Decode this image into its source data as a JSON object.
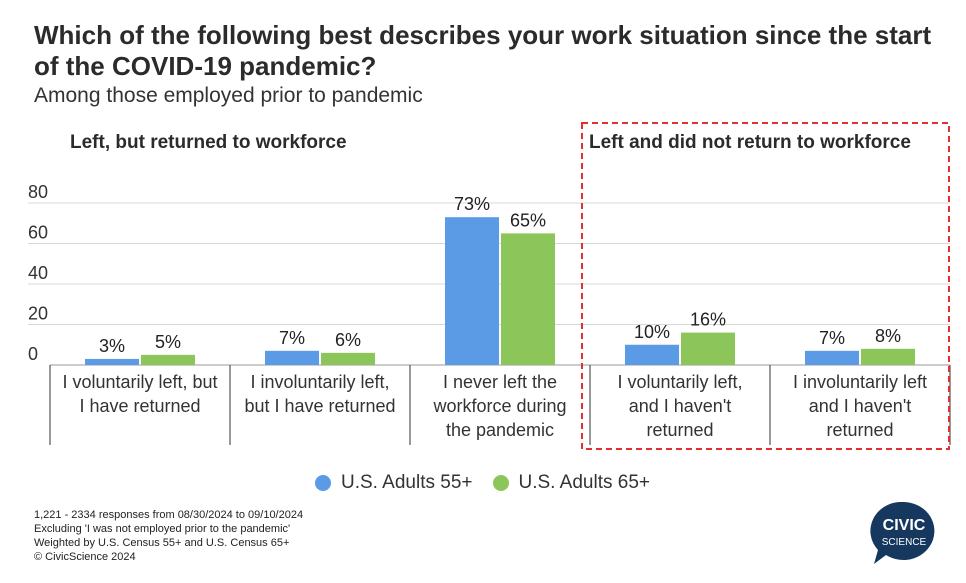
{
  "header": {
    "title": "Which of the following best describes your work situation since the start of the COVID-19 pandemic?",
    "subtitle": "Among those employed prior to pandemic"
  },
  "groups": [
    {
      "label": "Left, but returned to workforce"
    },
    {
      "label": "Left and did not return to workforce"
    }
  ],
  "colors": {
    "series1": "#5b9be6",
    "series2": "#8cc65a",
    "highlight": "#e03030",
    "grid": "#d8d8d8",
    "logo": "#16385f"
  },
  "chart_data": {
    "type": "bar",
    "title": "Which of the following best describes your work situation since the start of the COVID-19 pandemic?",
    "subtitle": "Among those employed prior to pandemic",
    "categories": [
      [
        "I voluntarily left, but",
        "I have returned"
      ],
      [
        "I involuntarily left,",
        "but I have returned"
      ],
      [
        "I never left the",
        "workforce during",
        "the pandemic"
      ],
      [
        "I voluntarily left,",
        "and I haven't",
        "returned"
      ],
      [
        "I involuntarily left",
        "and I haven't",
        "returned"
      ]
    ],
    "series": [
      {
        "name": "U.S. Adults 55+",
        "values": [
          3,
          7,
          73,
          10,
          7
        ],
        "labels": [
          "3%",
          "7%",
          "73%",
          "10%",
          "7%"
        ]
      },
      {
        "name": "U.S. Adults 65+",
        "values": [
          5,
          6,
          65,
          16,
          8
        ],
        "labels": [
          "5%",
          "6%",
          "65%",
          "16%",
          "8%"
        ]
      }
    ],
    "yticks": [
      0,
      20,
      40,
      60,
      80
    ],
    "ylim": [
      0,
      80
    ],
    "grid": true,
    "legend": "bottom"
  },
  "footnotes": [
    "1,221 - 2334 responses from 08/30/2024 to 09/10/2024",
    "Excluding 'I was not employed prior to the pandemic'",
    "Weighted by U.S. Census 55+ and U.S. Census 65+",
    "© CivicScience 2024"
  ],
  "logo": {
    "line1": "CIVIC",
    "line2": "SCIENCE"
  }
}
